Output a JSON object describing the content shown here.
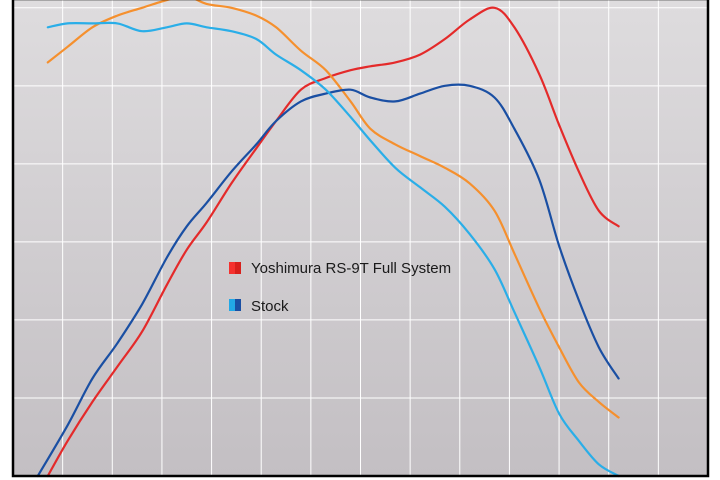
{
  "chart_data": {
    "type": "line",
    "title": "",
    "xlabel": "",
    "ylabel": "",
    "grid": true,
    "legend_position": "center",
    "colors": {
      "plot_background": "#d3d0d3",
      "grid": "#ffffff",
      "frame": "#000000"
    },
    "legend": [
      {
        "label": "Yoshimura RS-9T Full System",
        "swatch": [
          "#f5312e",
          "#d8201c"
        ]
      },
      {
        "label": "Stock",
        "swatch": [
          "#22a8e6",
          "#1a4fa3"
        ]
      }
    ],
    "series": [
      {
        "name": "Yoshimura RS-9T Full System",
        "measure": "power",
        "color": "#e42a2a",
        "values": [
          [
            0.7,
            0.0
          ],
          [
            1.1,
            0.9
          ],
          [
            1.6,
            1.9
          ],
          [
            2.1,
            2.8
          ],
          [
            2.6,
            3.7
          ],
          [
            3.1,
            4.9
          ],
          [
            3.5,
            5.8
          ],
          [
            3.9,
            6.5
          ],
          [
            4.4,
            7.5
          ],
          [
            4.9,
            8.4
          ],
          [
            5.3,
            9.1
          ],
          [
            5.8,
            9.9
          ],
          [
            6.3,
            10.2
          ],
          [
            6.8,
            10.4
          ],
          [
            7.2,
            10.5
          ],
          [
            7.7,
            10.6
          ],
          [
            8.2,
            10.8
          ],
          [
            8.7,
            11.2
          ],
          [
            9.2,
            11.7
          ],
          [
            9.7,
            12.0
          ],
          [
            10.1,
            11.5
          ],
          [
            10.6,
            10.3
          ],
          [
            11.0,
            9.0
          ],
          [
            11.4,
            7.8
          ],
          [
            11.8,
            6.8
          ],
          [
            12.2,
            6.4
          ]
        ]
      },
      {
        "name": "",
        "measure": "torque",
        "color": "#f5902e",
        "values": [
          [
            0.7,
            10.6
          ],
          [
            1.1,
            11.0
          ],
          [
            1.6,
            11.5
          ],
          [
            2.1,
            11.8
          ],
          [
            2.6,
            12.0
          ],
          [
            3.1,
            12.2
          ],
          [
            3.5,
            12.3
          ],
          [
            3.9,
            12.1
          ],
          [
            4.4,
            12.0
          ],
          [
            4.9,
            11.8
          ],
          [
            5.3,
            11.5
          ],
          [
            5.8,
            10.9
          ],
          [
            6.3,
            10.4
          ],
          [
            6.8,
            9.6
          ],
          [
            7.2,
            8.9
          ],
          [
            7.7,
            8.5
          ],
          [
            8.2,
            8.2
          ],
          [
            8.7,
            7.9
          ],
          [
            9.2,
            7.5
          ],
          [
            9.7,
            6.8
          ],
          [
            10.1,
            5.7
          ],
          [
            10.6,
            4.3
          ],
          [
            11.0,
            3.3
          ],
          [
            11.4,
            2.4
          ],
          [
            11.8,
            1.9
          ],
          [
            12.2,
            1.5
          ]
        ]
      },
      {
        "name": "Stock",
        "measure": "power",
        "color": "#1a4fa3",
        "values": [
          [
            0.5,
            0.0
          ],
          [
            1.1,
            1.3
          ],
          [
            1.6,
            2.5
          ],
          [
            2.1,
            3.4
          ],
          [
            2.6,
            4.4
          ],
          [
            3.1,
            5.6
          ],
          [
            3.5,
            6.4
          ],
          [
            3.9,
            7.0
          ],
          [
            4.4,
            7.8
          ],
          [
            4.9,
            8.5
          ],
          [
            5.3,
            9.1
          ],
          [
            5.8,
            9.6
          ],
          [
            6.3,
            9.8
          ],
          [
            6.8,
            9.9
          ],
          [
            7.2,
            9.7
          ],
          [
            7.7,
            9.6
          ],
          [
            8.2,
            9.8
          ],
          [
            8.7,
            10.0
          ],
          [
            9.2,
            10.0
          ],
          [
            9.7,
            9.7
          ],
          [
            10.1,
            8.9
          ],
          [
            10.6,
            7.6
          ],
          [
            11.0,
            5.9
          ],
          [
            11.4,
            4.5
          ],
          [
            11.8,
            3.3
          ],
          [
            12.2,
            2.5
          ]
        ]
      },
      {
        "name": "",
        "measure": "torque",
        "color": "#2aaee8",
        "values": [
          [
            0.7,
            11.5
          ],
          [
            1.1,
            11.6
          ],
          [
            1.6,
            11.6
          ],
          [
            2.1,
            11.6
          ],
          [
            2.6,
            11.4
          ],
          [
            3.1,
            11.5
          ],
          [
            3.5,
            11.6
          ],
          [
            3.9,
            11.5
          ],
          [
            4.4,
            11.4
          ],
          [
            4.9,
            11.2
          ],
          [
            5.3,
            10.8
          ],
          [
            5.8,
            10.4
          ],
          [
            6.3,
            9.9
          ],
          [
            6.8,
            9.2
          ],
          [
            7.2,
            8.6
          ],
          [
            7.7,
            7.9
          ],
          [
            8.2,
            7.4
          ],
          [
            8.7,
            6.9
          ],
          [
            9.2,
            6.2
          ],
          [
            9.7,
            5.3
          ],
          [
            10.1,
            4.2
          ],
          [
            10.6,
            2.8
          ],
          [
            11.0,
            1.6
          ],
          [
            11.4,
            0.9
          ],
          [
            11.8,
            0.3
          ],
          [
            12.2,
            0.0
          ]
        ]
      }
    ],
    "xlim": [
      0,
      14
    ],
    "ylim": [
      0,
      12.2
    ]
  }
}
